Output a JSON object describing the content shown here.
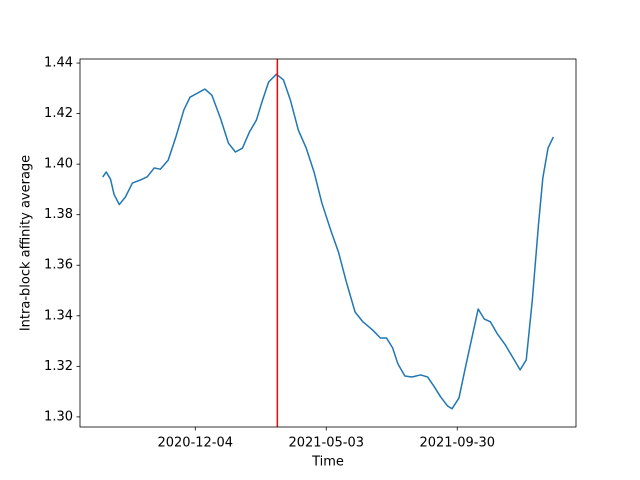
{
  "chart_data": {
    "type": "line",
    "xlabel": "Time",
    "ylabel": "Intra-block affinity average",
    "x": [
      "2020-08-20",
      "2020-08-24",
      "2020-08-29",
      "2020-09-02",
      "2020-09-08",
      "2020-09-15",
      "2020-09-23",
      "2020-10-02",
      "2020-10-10",
      "2020-10-18",
      "2020-10-25",
      "2020-11-03",
      "2020-11-12",
      "2020-11-21",
      "2020-11-28",
      "2020-12-06",
      "2020-12-15",
      "2020-12-23",
      "2021-01-02",
      "2021-01-11",
      "2021-01-19",
      "2021-01-27",
      "2021-02-04",
      "2021-02-12",
      "2021-02-19",
      "2021-02-26",
      "2021-03-07",
      "2021-03-15",
      "2021-03-23",
      "2021-04-01",
      "2021-04-10",
      "2021-04-19",
      "2021-04-28",
      "2021-05-08",
      "2021-05-17",
      "2021-05-26",
      "2021-06-05",
      "2021-06-14",
      "2021-06-25",
      "2021-07-04",
      "2021-07-11",
      "2021-07-18",
      "2021-07-24",
      "2021-08-01",
      "2021-08-09",
      "2021-08-19",
      "2021-08-27",
      "2021-09-03",
      "2021-09-11",
      "2021-09-19",
      "2021-09-24",
      "2021-10-02",
      "2021-10-10",
      "2021-10-17",
      "2021-10-24",
      "2021-10-31",
      "2021-11-07",
      "2021-11-15",
      "2021-11-24",
      "2021-12-03",
      "2021-12-11",
      "2021-12-18",
      "2021-12-25",
      "2022-01-01",
      "2022-01-06",
      "2022-01-12",
      "2022-01-18"
    ],
    "values": [
      1.3949,
      1.3969,
      1.394,
      1.388,
      1.384,
      1.387,
      1.3925,
      1.3937,
      1.395,
      1.3985,
      1.398,
      1.4016,
      1.411,
      1.4215,
      1.4265,
      1.428,
      1.4297,
      1.4273,
      1.418,
      1.4083,
      1.4048,
      1.4063,
      1.4127,
      1.4174,
      1.4253,
      1.4325,
      1.4356,
      1.4333,
      1.4253,
      1.4135,
      1.4064,
      1.3969,
      1.3846,
      1.374,
      1.3652,
      1.3534,
      1.3415,
      1.3376,
      1.3344,
      1.3312,
      1.3312,
      1.3273,
      1.321,
      1.3162,
      1.3158,
      1.3166,
      1.3158,
      1.3123,
      1.3079,
      1.3043,
      1.3032,
      1.3075,
      1.3206,
      1.3316,
      1.3427,
      1.3387,
      1.3376,
      1.3328,
      1.3285,
      1.3233,
      1.3186,
      1.3225,
      1.3463,
      1.3759,
      1.3945,
      1.4064,
      1.4107
    ],
    "color": "#1f77b4",
    "vline": {
      "x": "2021-03-08",
      "color": "#ff0000"
    },
    "xlim": [
      "2020-07-25",
      "2022-02-13"
    ],
    "xticks": [
      "2020-12-04",
      "2021-05-03",
      "2021-09-30"
    ],
    "ylim": [
      1.296,
      1.4416
    ],
    "yticks": [
      {
        "value": 1.3,
        "label": "1.30"
      },
      1.32,
      1.34,
      1.36,
      1.38,
      {
        "value": 1.4,
        "label": "1.40"
      },
      1.42,
      1.44
    ]
  }
}
